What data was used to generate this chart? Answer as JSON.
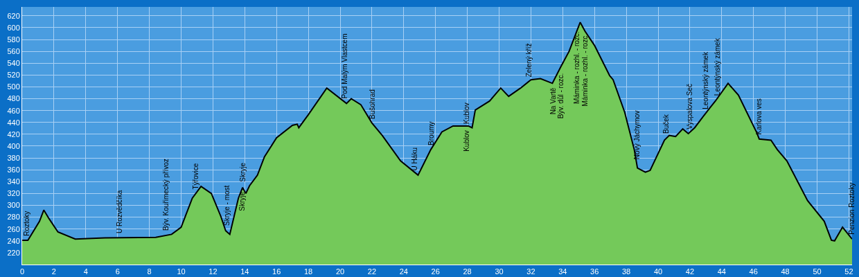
{
  "chart_data": {
    "type": "area",
    "x": [
      0,
      0.36,
      1.09,
      1.36,
      1.7,
      2.25,
      3.34,
      5.2,
      8.4,
      9.4,
      10.0,
      10.7,
      11.25,
      11.9,
      12.5,
      12.8,
      13.06,
      13.6,
      13.86,
      14.07,
      14.3,
      14.8,
      15.24,
      16,
      17,
      17.3,
      17.4,
      18,
      19.16,
      20.4,
      20.7,
      21.3,
      22.0,
      22.65,
      23.8,
      24.9,
      25.7,
      26.4,
      27.1,
      28.06,
      28.3,
      28.5,
      29.4,
      30.1,
      30.6,
      31.35,
      32.0,
      32.6,
      33.35,
      33.9,
      34.4,
      35.1,
      35.4,
      36.0,
      36.95,
      37.17,
      37.9,
      38.5,
      38.7,
      39.2,
      39.5,
      40.4,
      40.7,
      41.1,
      41.55,
      41.9,
      42.3,
      43.15,
      43.6,
      44.4,
      45.05,
      46.2,
      46.36,
      47.1,
      47.5,
      48.1,
      49.4,
      50.45,
      50.9,
      51.1,
      51.6,
      52.2
    ],
    "series": [
      {
        "color": "#74c95a",
        "values": [
          241,
          241,
          273,
          292,
          277,
          255,
          243,
          245,
          246,
          251,
          263,
          312,
          332,
          320,
          281,
          257,
          251,
          312,
          330,
          320,
          333,
          351,
          382,
          414,
          435,
          437,
          431,
          453,
          498,
          472,
          480,
          470,
          439,
          418,
          375,
          351,
          394,
          424,
          434,
          434,
          431,
          461,
          476,
          498,
          484,
          498,
          512,
          514,
          506,
          535,
          560,
          609,
          594,
          570,
          519,
          512,
          457,
          394,
          363,
          356,
          359,
          410,
          418,
          416,
          429,
          421,
          431,
          461,
          476,
          506,
          486,
          423,
          412,
          410,
          394,
          375,
          308,
          273,
          241,
          240,
          263,
          243
        ]
      }
    ],
    "xlim": [
      0,
      52.2
    ],
    "ylim": [
      200,
      635
    ],
    "xticks": [
      0,
      2,
      4,
      6,
      8,
      10,
      12,
      14,
      16,
      18,
      20,
      22,
      24,
      26,
      28,
      30,
      32,
      34,
      36,
      38,
      40,
      42,
      44,
      46,
      48,
      50,
      52
    ],
    "yticks": [
      220,
      240,
      260,
      280,
      300,
      320,
      340,
      360,
      380,
      400,
      420,
      440,
      460,
      480,
      500,
      520,
      540,
      560,
      580,
      600,
      620
    ],
    "grid": true,
    "line_style": "solid",
    "annotations": [
      {
        "text": "Roztoky",
        "x": 0.3,
        "y": 241
      },
      {
        "text": "U Rozvědčíka",
        "x": 6.1,
        "y": 245
      },
      {
        "text": "Býv. Kouřimecký přívoz",
        "x": 9.05,
        "y": 250
      },
      {
        "text": "Týřovice",
        "x": 10.9,
        "y": 320
      },
      {
        "text": "Skryje - most",
        "x": 12.9,
        "y": 258
      },
      {
        "text": "Skryje",
        "x": 13.85,
        "y": 330
      },
      {
        "text": "Skryje",
        "x": 14.2,
        "y": 333
      },
      {
        "text": "Pod Malým Vlastcem",
        "x": 20.3,
        "y": 473
      },
      {
        "text": "Bušohrad",
        "x": 22.0,
        "y": 439
      },
      {
        "text": "U Háku",
        "x": 24.7,
        "y": 352
      },
      {
        "text": "Broumy",
        "x": 25.7,
        "y": 394
      },
      {
        "text": "Kublov",
        "x": 27.95,
        "y": 434
      },
      {
        "text": "Kublov",
        "x": 28.3,
        "y": 431
      },
      {
        "text": "Zelený kříž",
        "x": 31.85,
        "y": 510
      },
      {
        "text": "Na Vartě",
        "x": 33.4,
        "y": 506
      },
      {
        "text": "Býv. důl - rozc.",
        "x": 33.85,
        "y": 530
      },
      {
        "text": "Máminka - rozhl. - rozc.",
        "x": 34.9,
        "y": 600
      },
      {
        "text": "Máminka - rozhl. - rozc",
        "x": 35.4,
        "y": 594
      },
      {
        "text": "Nový Jáchymov",
        "x": 38.65,
        "y": 370
      },
      {
        "text": "Buček",
        "x": 40.5,
        "y": 414
      },
      {
        "text": "Vyspalova Seč",
        "x": 41.95,
        "y": 421
      },
      {
        "text": "Leontýnský zámek",
        "x": 43.0,
        "y": 455
      },
      {
        "text": "Leontýnský zámek",
        "x": 43.7,
        "y": 478
      },
      {
        "text": "Karlova ves",
        "x": 46.35,
        "y": 412
      },
      {
        "text": "Penzion Roztoky",
        "x": 52.2,
        "y": 243
      }
    ]
  }
}
